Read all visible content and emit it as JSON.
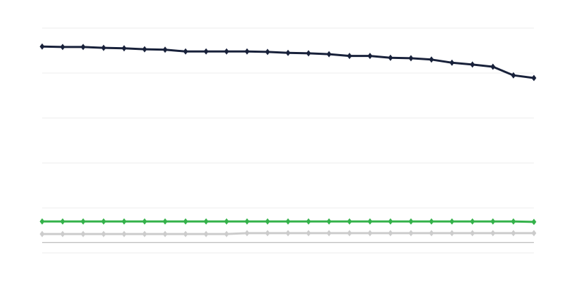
{
  "chart_data": {
    "type": "line",
    "title": "",
    "xlabel": "",
    "ylabel": "",
    "x": [
      1,
      2,
      3,
      4,
      5,
      6,
      7,
      8,
      9,
      10,
      11,
      12,
      13,
      14,
      15,
      16,
      17,
      18,
      19,
      20,
      21,
      22,
      23,
      24,
      25
    ],
    "ylim": [
      0,
      5
    ],
    "grid": true,
    "baseline": 0.23,
    "legend": "none",
    "series": [
      {
        "color": "#18213a",
        "values": [
          4.59,
          4.58,
          4.58,
          4.56,
          4.55,
          4.53,
          4.52,
          4.48,
          4.48,
          4.48,
          4.48,
          4.47,
          4.45,
          4.44,
          4.42,
          4.38,
          4.38,
          4.34,
          4.33,
          4.3,
          4.23,
          4.19,
          4.14,
          3.95,
          3.89
        ]
      },
      {
        "color": "#34b24a",
        "values": [
          0.7,
          0.7,
          0.7,
          0.7,
          0.7,
          0.7,
          0.7,
          0.7,
          0.7,
          0.7,
          0.7,
          0.7,
          0.7,
          0.7,
          0.7,
          0.7,
          0.7,
          0.7,
          0.7,
          0.7,
          0.7,
          0.7,
          0.7,
          0.7,
          0.69
        ]
      },
      {
        "color": "#cccccc",
        "values": [
          0.42,
          0.42,
          0.42,
          0.42,
          0.42,
          0.42,
          0.42,
          0.42,
          0.42,
          0.42,
          0.44,
          0.44,
          0.44,
          0.44,
          0.44,
          0.44,
          0.44,
          0.44,
          0.44,
          0.44,
          0.44,
          0.44,
          0.44,
          0.44,
          0.44
        ]
      }
    ]
  }
}
